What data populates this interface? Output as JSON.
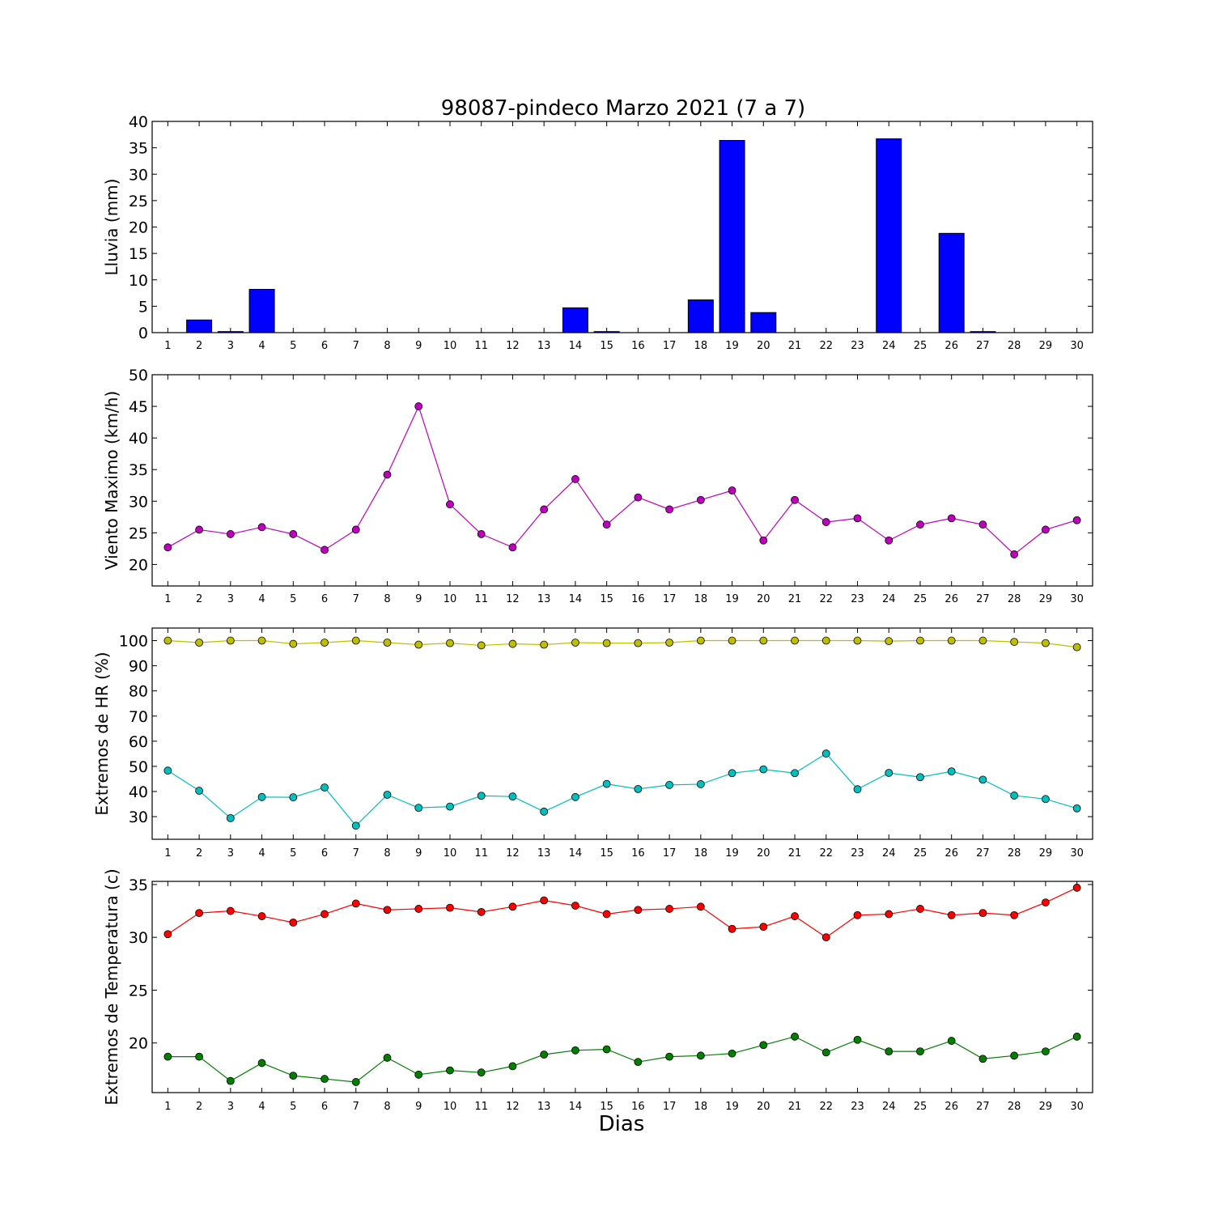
{
  "title": "98087-pindeco Marzo 2021  (7 a 7)",
  "xlabel": "Dias",
  "chart_data": [
    {
      "type": "bar",
      "ylabel": "Lluvia (mm)",
      "ylim": [
        0,
        40
      ],
      "yticks": [
        0,
        5,
        10,
        15,
        20,
        25,
        30,
        35,
        40
      ],
      "categories": [
        1,
        2,
        3,
        4,
        5,
        6,
        7,
        8,
        9,
        10,
        11,
        12,
        13,
        14,
        15,
        16,
        17,
        18,
        19,
        20,
        21,
        22,
        23,
        24,
        25,
        26,
        27,
        28,
        29,
        30
      ],
      "values": [
        0,
        2.4,
        0.2,
        8.2,
        0,
        0,
        0,
        0,
        0,
        0,
        0,
        0,
        0,
        4.7,
        0.2,
        0,
        0,
        6.2,
        36.4,
        3.8,
        0,
        0,
        0,
        36.7,
        0,
        18.8,
        0.2,
        0,
        0,
        0
      ],
      "color": "#0000ff"
    },
    {
      "type": "line",
      "ylabel": "Viento Maximo (km/h)",
      "ylim": [
        16.6,
        50
      ],
      "yticks": [
        20,
        25,
        30,
        35,
        40,
        45,
        50
      ],
      "x": [
        1,
        2,
        3,
        4,
        5,
        6,
        7,
        8,
        9,
        10,
        11,
        12,
        13,
        14,
        15,
        16,
        17,
        18,
        19,
        20,
        21,
        22,
        23,
        24,
        25,
        26,
        27,
        28,
        29,
        30
      ],
      "series": [
        {
          "values": [
            22.7,
            25.5,
            24.8,
            25.9,
            24.8,
            22.3,
            25.5,
            34.2,
            45.0,
            29.5,
            24.8,
            22.7,
            28.7,
            33.5,
            26.3,
            30.6,
            28.7,
            30.2,
            31.7,
            23.8,
            30.2,
            26.7,
            27.3,
            23.8,
            26.3,
            27.3,
            26.3,
            21.6,
            25.5,
            27.0
          ],
          "color": "#bf00bf"
        }
      ]
    },
    {
      "type": "line",
      "ylabel": "Extremos de HR (%)",
      "ylim": [
        21,
        105
      ],
      "yticks": [
        30,
        40,
        50,
        60,
        70,
        80,
        90,
        100
      ],
      "x": [
        1,
        2,
        3,
        4,
        5,
        6,
        7,
        8,
        9,
        10,
        11,
        12,
        13,
        14,
        15,
        16,
        17,
        18,
        19,
        20,
        21,
        22,
        23,
        24,
        25,
        26,
        27,
        28,
        29,
        30
      ],
      "series": [
        {
          "values": [
            100,
            99.2,
            100,
            100,
            98.7,
            99.2,
            100,
            99.2,
            98.4,
            99,
            98.1,
            98.7,
            98.4,
            99.2,
            99,
            99,
            99.2,
            100,
            100,
            100,
            100,
            100,
            100,
            99.8,
            100,
            100,
            100,
            99.5,
            99,
            97.4
          ],
          "color": "#bfbf00"
        },
        {
          "values": [
            48.3,
            40.3,
            29.4,
            37.8,
            37.7,
            41.6,
            26.4,
            38.7,
            33.5,
            34.0,
            38.3,
            38.0,
            32.0,
            37.8,
            43.0,
            41.0,
            42.6,
            42.9,
            47.3,
            48.8,
            47.3,
            55.1,
            40.9,
            47.4,
            45.7,
            48.0,
            44.7,
            38.4,
            37.0,
            33.3
          ],
          "color": "#00bfbf"
        }
      ]
    },
    {
      "type": "line",
      "ylabel": "Extremos de Temperatura (c)",
      "ylim": [
        15.3,
        35.3
      ],
      "yticks": [
        20,
        25,
        30,
        35
      ],
      "x": [
        1,
        2,
        3,
        4,
        5,
        6,
        7,
        8,
        9,
        10,
        11,
        12,
        13,
        14,
        15,
        16,
        17,
        18,
        19,
        20,
        21,
        22,
        23,
        24,
        25,
        26,
        27,
        28,
        29,
        30
      ],
      "series": [
        {
          "values": [
            30.3,
            32.3,
            32.5,
            32.0,
            31.4,
            32.2,
            33.2,
            32.6,
            32.7,
            32.8,
            32.4,
            32.9,
            33.5,
            33.0,
            32.2,
            32.6,
            32.7,
            32.9,
            30.8,
            31.0,
            32.0,
            30.0,
            32.1,
            32.2,
            32.7,
            32.1,
            32.3,
            32.1,
            33.3,
            34.7
          ],
          "color": "#ff0000"
        },
        {
          "values": [
            18.7,
            18.7,
            16.4,
            18.1,
            16.9,
            16.6,
            16.3,
            18.6,
            17.0,
            17.4,
            17.2,
            17.8,
            18.9,
            19.3,
            19.4,
            18.2,
            18.7,
            18.8,
            19.0,
            19.8,
            20.6,
            19.1,
            20.3,
            19.2,
            19.2,
            20.2,
            18.5,
            18.8,
            19.2,
            20.6
          ],
          "color": "#007f00"
        }
      ]
    }
  ]
}
